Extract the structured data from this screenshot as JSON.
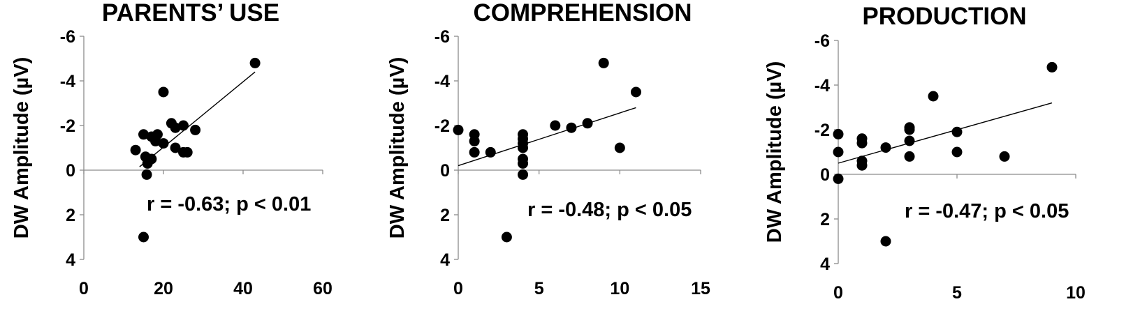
{
  "chart_data": [
    {
      "type": "scatter",
      "title": "PARENTS’ USE",
      "ylabel": "DW Amplitude (µV)",
      "xlabel": "",
      "xlim": [
        0,
        60
      ],
      "xticks": [
        0,
        20,
        40,
        60
      ],
      "xtick_labels": [
        "0",
        "20",
        "40",
        "60"
      ],
      "ylim": [
        -6,
        4
      ],
      "y_inverted": true,
      "yticks": [
        -6,
        -4,
        -2,
        0,
        2,
        4
      ],
      "ytick_labels": [
        "-6",
        "-4",
        "-2",
        "0",
        "2",
        "4"
      ],
      "annotation": "r = -0.63; p < 0.01",
      "points": [
        [
          13,
          -0.9
        ],
        [
          15,
          -1.6
        ],
        [
          15.5,
          -0.6
        ],
        [
          15.8,
          0.2
        ],
        [
          16,
          -0.3
        ],
        [
          17,
          -0.5
        ],
        [
          17,
          -1.5
        ],
        [
          18,
          -1.3
        ],
        [
          18.5,
          -1.6
        ],
        [
          20,
          -3.5
        ],
        [
          20,
          -1.2
        ],
        [
          22,
          -2.1
        ],
        [
          23,
          -1.0
        ],
        [
          23,
          -1.9
        ],
        [
          25,
          -2.0
        ],
        [
          25,
          -0.8
        ],
        [
          26,
          -0.8
        ],
        [
          28,
          -1.8
        ],
        [
          43,
          -4.8
        ],
        [
          15,
          3.0
        ]
      ],
      "trendline": [
        [
          14,
          -0.15
        ],
        [
          43,
          -4.4
        ]
      ]
    },
    {
      "type": "scatter",
      "title": "COMPREHENSION",
      "ylabel": "DW Amplitude (µV)",
      "xlabel": "",
      "xlim": [
        0,
        15
      ],
      "xticks": [
        0,
        5,
        10,
        15
      ],
      "xtick_labels": [
        "0",
        "5",
        "10",
        "15"
      ],
      "ylim": [
        -6,
        4
      ],
      "y_inverted": true,
      "yticks": [
        -6,
        -4,
        -2,
        0,
        2,
        4
      ],
      "ytick_labels": [
        "-6",
        "-4",
        "-2",
        "0",
        "2",
        "4"
      ],
      "annotation": "r = -0.48; p < 0.05",
      "points": [
        [
          0,
          -1.8
        ],
        [
          1,
          -1.6
        ],
        [
          1,
          -1.3
        ],
        [
          1,
          -0.8
        ],
        [
          2,
          -0.8
        ],
        [
          3,
          3.0
        ],
        [
          4,
          -1.6
        ],
        [
          4,
          -1.4
        ],
        [
          4,
          -1.2
        ],
        [
          4,
          -1.0
        ],
        [
          4,
          -0.5
        ],
        [
          4,
          -0.3
        ],
        [
          4,
          0.2
        ],
        [
          6,
          -2.0
        ],
        [
          7,
          -1.9
        ],
        [
          8,
          -2.1
        ],
        [
          9,
          -4.8
        ],
        [
          10,
          -1.0
        ],
        [
          11,
          -3.5
        ]
      ],
      "trendline": [
        [
          0,
          -0.2
        ],
        [
          11,
          -2.8
        ]
      ]
    },
    {
      "type": "scatter",
      "title": "PRODUCTION",
      "ylabel": "DW Amplitude (µV)",
      "xlabel": "",
      "xlim": [
        0,
        10
      ],
      "xticks": [
        0,
        5,
        10
      ],
      "xtick_labels": [
        "0",
        "5",
        "10"
      ],
      "ylim": [
        -6,
        4
      ],
      "y_inverted": true,
      "yticks": [
        -6,
        -4,
        -2,
        0,
        2,
        4
      ],
      "ytick_labels": [
        "-6",
        "-4",
        "-2",
        "0",
        "2",
        "4"
      ],
      "annotation": "r = -0.47; p < 0.05",
      "points": [
        [
          0,
          -1.8
        ],
        [
          0,
          -1.0
        ],
        [
          0,
          0.2
        ],
        [
          1,
          -1.6
        ],
        [
          1,
          -1.4
        ],
        [
          1,
          -0.6
        ],
        [
          1,
          -0.4
        ],
        [
          2,
          -1.2
        ],
        [
          2,
          3.0
        ],
        [
          3,
          -2.1
        ],
        [
          3,
          -2.0
        ],
        [
          3,
          -1.5
        ],
        [
          3,
          -0.8
        ],
        [
          4,
          -3.5
        ],
        [
          5,
          -1.9
        ],
        [
          5,
          -1.0
        ],
        [
          7,
          -0.8
        ],
        [
          9,
          -4.8
        ]
      ],
      "trendline": [
        [
          0,
          -0.5
        ],
        [
          9,
          -3.2
        ]
      ]
    }
  ]
}
